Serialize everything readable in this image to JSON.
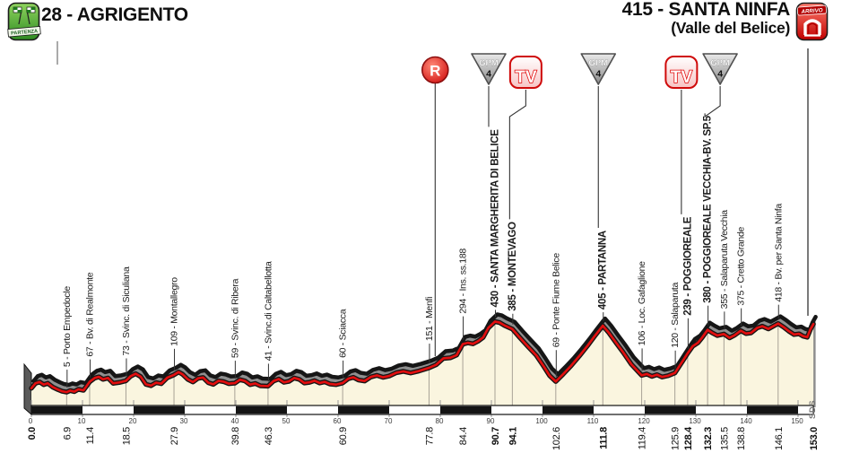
{
  "header": {
    "start_label": "28 - AGRIGENTO",
    "start_badge": "PARTENZA",
    "finish_label": "415 - SANTA NINFA",
    "finish_sub": "(Valle del Belice)",
    "finish_badge": "ARRIVO"
  },
  "watermark": "SDS",
  "colors": {
    "profile_line": "#e10e0e",
    "profile_fill": "#faf5df",
    "shadow_fill": "#8f8f8f",
    "outline": "#161616",
    "bar_black": "#141414",
    "marker_red": "#cf0a0a",
    "gpm_gray": "#8a8a8a",
    "start_green": "#2e8b22"
  },
  "chart_data": {
    "type": "area",
    "title": "",
    "x_unit": "km",
    "y_unit": "m",
    "xlim": [
      0,
      153
    ],
    "ylim": [
      0,
      450
    ],
    "grid": false,
    "x_ticks": [
      0,
      10,
      20,
      30,
      40,
      50,
      60,
      70,
      80,
      90,
      100,
      110,
      120,
      130,
      140,
      150
    ],
    "start": {
      "km": 0.0,
      "elevation_m": 28,
      "name": "AGRIGENTO"
    },
    "finish": {
      "km": 153.0,
      "elevation_m": 415,
      "name": "SANTA NINFA (Valle del Belice)"
    },
    "km_labels": [
      {
        "km": 0.0,
        "bold": true
      },
      {
        "km": 6.9,
        "bold": false
      },
      {
        "km": 11.4,
        "bold": false
      },
      {
        "km": 18.5,
        "bold": false
      },
      {
        "km": 27.9,
        "bold": false
      },
      {
        "km": 39.8,
        "bold": false
      },
      {
        "km": 46.3,
        "bold": false
      },
      {
        "km": 60.9,
        "bold": false
      },
      {
        "km": 77.8,
        "bold": false
      },
      {
        "km": 84.4,
        "bold": false
      },
      {
        "km": 90.7,
        "bold": true
      },
      {
        "km": 94.1,
        "bold": true
      },
      {
        "km": 102.6,
        "bold": false
      },
      {
        "km": 111.8,
        "bold": true
      },
      {
        "km": 119.4,
        "bold": false
      },
      {
        "km": 125.9,
        "bold": false
      },
      {
        "km": 128.4,
        "bold": true
      },
      {
        "km": 132.3,
        "bold": true
      },
      {
        "km": 135.5,
        "bold": false
      },
      {
        "km": 138.8,
        "bold": false
      },
      {
        "km": 146.1,
        "bold": false
      },
      {
        "km": 153.0,
        "bold": true
      }
    ],
    "waypoints": [
      {
        "km": 6.9,
        "elevation_m": 5,
        "name": "Porto Empedocle",
        "emphasis": false
      },
      {
        "km": 11.4,
        "elevation_m": 67,
        "name": "Bv. di Realmonte",
        "emphasis": false
      },
      {
        "km": 18.5,
        "elevation_m": 73,
        "name": "Svinc. di Siculiana",
        "emphasis": false
      },
      {
        "km": 27.9,
        "elevation_m": 109,
        "name": "Montallegro",
        "emphasis": false
      },
      {
        "km": 39.8,
        "elevation_m": 59,
        "name": "Svinc. di Ribera",
        "emphasis": false
      },
      {
        "km": 46.3,
        "elevation_m": 41,
        "name": "Svinc.di Caltabellotta",
        "emphasis": false
      },
      {
        "km": 60.9,
        "elevation_m": 60,
        "name": "Sciacca",
        "emphasis": false
      },
      {
        "km": 77.8,
        "elevation_m": 151,
        "name": "Menfi",
        "emphasis": false
      },
      {
        "km": 84.4,
        "elevation_m": 294,
        "name": "Ins. ss.188",
        "emphasis": false
      },
      {
        "km": 90.7,
        "elevation_m": 430,
        "name": "SANTA MARGHERITA DI BELICE",
        "emphasis": true
      },
      {
        "km": 94.1,
        "elevation_m": 385,
        "name": "MONTEVAGO",
        "emphasis": true
      },
      {
        "km": 102.6,
        "elevation_m": 69,
        "name": "Ponte Fiume Belice",
        "emphasis": false
      },
      {
        "km": 111.8,
        "elevation_m": 405,
        "name": "PARTANNA",
        "emphasis": true
      },
      {
        "km": 119.4,
        "elevation_m": 106,
        "name": "Loc. Gafaglione",
        "emphasis": false
      },
      {
        "km": 125.9,
        "elevation_m": 120,
        "name": "Salaparuta",
        "emphasis": false
      },
      {
        "km": 128.4,
        "elevation_m": 239,
        "name": "POGGIOREALE",
        "emphasis": true
      },
      {
        "km": 132.3,
        "elevation_m": 380,
        "name": "POGGIOREALE VECCHIA-BV. SP.5",
        "emphasis": true
      },
      {
        "km": 135.5,
        "elevation_m": 355,
        "name": "Salaparuta Vecchia",
        "emphasis": false
      },
      {
        "km": 138.8,
        "elevation_m": 375,
        "name": "Cretto Grande",
        "emphasis": false
      },
      {
        "km": 146.1,
        "elevation_m": 418,
        "name": "Bv. per Santa Ninfa",
        "emphasis": false
      }
    ],
    "markers": [
      {
        "type": "feed-zone",
        "symbol": "R",
        "km": 79.0
      },
      {
        "type": "kom",
        "symbol": "GPM",
        "category": "4",
        "km": 90.7,
        "at": "SANTA MARGHERITA DI BELICE"
      },
      {
        "type": "sprint",
        "symbol": "TV",
        "km": 94.1,
        "at": "MONTEVAGO"
      },
      {
        "type": "kom",
        "symbol": "GPM",
        "category": "4",
        "km": 111.8,
        "at": "PARTANNA"
      },
      {
        "type": "sprint",
        "symbol": "TV",
        "km": 128.4,
        "at": "POGGIOREALE"
      },
      {
        "type": "kom",
        "symbol": "GPM",
        "category": "4",
        "km": 132.3,
        "at": "POGGIOREALE VECCHIA-BV. SP.5"
      }
    ],
    "profile": [
      [
        0,
        28
      ],
      [
        0.8,
        58
      ],
      [
        1.6,
        66
      ],
      [
        2.4,
        50
      ],
      [
        3.2,
        58
      ],
      [
        4.2,
        35
      ],
      [
        5.2,
        20
      ],
      [
        6,
        10
      ],
      [
        6.9,
        5
      ],
      [
        7.6,
        14
      ],
      [
        8.4,
        8
      ],
      [
        9.2,
        22
      ],
      [
        10.2,
        16
      ],
      [
        11.4,
        67
      ],
      [
        12.4,
        90
      ],
      [
        13.2,
        97
      ],
      [
        14,
        82
      ],
      [
        15,
        90
      ],
      [
        16,
        58
      ],
      [
        17.2,
        63
      ],
      [
        18.5,
        73
      ],
      [
        19.4,
        100
      ],
      [
        20.4,
        116
      ],
      [
        21.4,
        98
      ],
      [
        22.4,
        52
      ],
      [
        23.4,
        44
      ],
      [
        24.4,
        62
      ],
      [
        25.4,
        56
      ],
      [
        26.6,
        92
      ],
      [
        27.9,
        109
      ],
      [
        28.8,
        126
      ],
      [
        29.6,
        112
      ],
      [
        30.6,
        82
      ],
      [
        31.6,
        66
      ],
      [
        32.6,
        88
      ],
      [
        33.6,
        93
      ],
      [
        34.6,
        62
      ],
      [
        35.6,
        52
      ],
      [
        36.6,
        73
      ],
      [
        37.6,
        68
      ],
      [
        38.6,
        56
      ],
      [
        39.8,
        59
      ],
      [
        40.8,
        80
      ],
      [
        41.8,
        72
      ],
      [
        42.8,
        50
      ],
      [
        43.8,
        57
      ],
      [
        44.8,
        43
      ],
      [
        46.3,
        41
      ],
      [
        47.4,
        72
      ],
      [
        48.4,
        84
      ],
      [
        49.4,
        64
      ],
      [
        50.4,
        70
      ],
      [
        51.4,
        90
      ],
      [
        52.4,
        82
      ],
      [
        53.4,
        60
      ],
      [
        54.4,
        64
      ],
      [
        55.4,
        74
      ],
      [
        56.4,
        60
      ],
      [
        57.4,
        67
      ],
      [
        58.4,
        54
      ],
      [
        59.6,
        50
      ],
      [
        60.9,
        60
      ],
      [
        62,
        86
      ],
      [
        63,
        94
      ],
      [
        64,
        78
      ],
      [
        65.2,
        72
      ],
      [
        66.4,
        96
      ],
      [
        67.6,
        106
      ],
      [
        68.8,
        94
      ],
      [
        70,
        102
      ],
      [
        71.4,
        122
      ],
      [
        72.8,
        130
      ],
      [
        74.2,
        120
      ],
      [
        75.8,
        132
      ],
      [
        77.8,
        151
      ],
      [
        79.2,
        170
      ],
      [
        80.6,
        208
      ],
      [
        82,
        212
      ],
      [
        83.2,
        228
      ],
      [
        84.4,
        294
      ],
      [
        85.4,
        302
      ],
      [
        86.4,
        296
      ],
      [
        87.4,
        312
      ],
      [
        88.4,
        335
      ],
      [
        89.4,
        392
      ],
      [
        90.7,
        430
      ],
      [
        91.6,
        424
      ],
      [
        92.6,
        406
      ],
      [
        94.1,
        385
      ],
      [
        95.6,
        332
      ],
      [
        97.2,
        278
      ],
      [
        98.8,
        226
      ],
      [
        100.2,
        162
      ],
      [
        101.4,
        104
      ],
      [
        102.6,
        69
      ],
      [
        104,
        112
      ],
      [
        105.6,
        164
      ],
      [
        107.2,
        222
      ],
      [
        108.8,
        284
      ],
      [
        110.2,
        342
      ],
      [
        111.8,
        405
      ],
      [
        113,
        362
      ],
      [
        114.4,
        302
      ],
      [
        115.8,
        244
      ],
      [
        117.4,
        172
      ],
      [
        119.4,
        106
      ],
      [
        120.4,
        114
      ],
      [
        121.4,
        100
      ],
      [
        122.4,
        110
      ],
      [
        123.4,
        96
      ],
      [
        124.6,
        104
      ],
      [
        125.9,
        120
      ],
      [
        127,
        172
      ],
      [
        128.4,
        239
      ],
      [
        129.4,
        282
      ],
      [
        130.4,
        302
      ],
      [
        131.2,
        332
      ],
      [
        132.3,
        380
      ],
      [
        133.2,
        362
      ],
      [
        134.2,
        346
      ],
      [
        135.5,
        355
      ],
      [
        136.6,
        332
      ],
      [
        137.6,
        348
      ],
      [
        138.8,
        375
      ],
      [
        139.8,
        358
      ],
      [
        140.8,
        362
      ],
      [
        142,
        392
      ],
      [
        143,
        402
      ],
      [
        144.2,
        386
      ],
      [
        146.1,
        418
      ],
      [
        147.2,
        396
      ],
      [
        148.2,
        372
      ],
      [
        149.2,
        352
      ],
      [
        150.2,
        356
      ],
      [
        151,
        342
      ],
      [
        151.8,
        336
      ],
      [
        152.4,
        382
      ],
      [
        153,
        415
      ]
    ]
  }
}
